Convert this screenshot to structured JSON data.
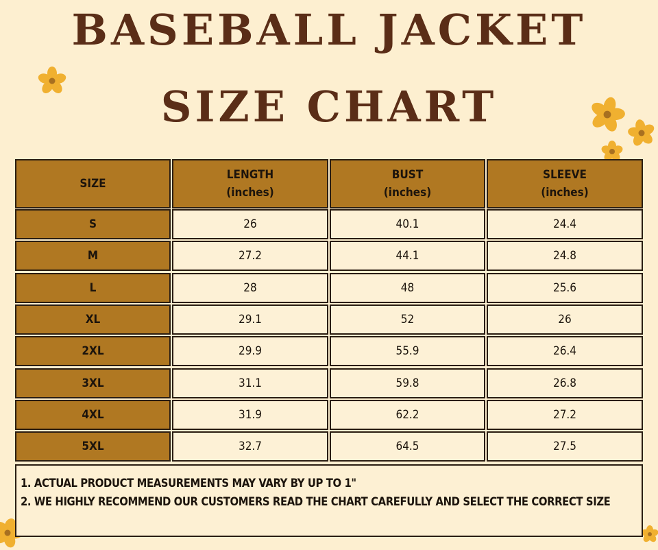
{
  "title": {
    "line1": "BASEBALL JACKET",
    "line2": "SIZE CHART"
  },
  "colors": {
    "background": "#fdefd0",
    "title": "#5a2d17",
    "header_fill": "#b07822",
    "cell_fill": "#fdf1d6",
    "border": "#2a1d12",
    "flower": "#f0b030",
    "flower_center": "#a87020"
  },
  "table": {
    "headers": [
      {
        "label": "SIZE",
        "unit": ""
      },
      {
        "label": "LENGTH",
        "unit": "(inches)"
      },
      {
        "label": "BUST",
        "unit": "(inches)"
      },
      {
        "label": "SLEEVE",
        "unit": "(inches)"
      }
    ],
    "rows": [
      {
        "size": "S",
        "length": "26",
        "bust": "40.1",
        "sleeve": "24.4"
      },
      {
        "size": "M",
        "length": "27.2",
        "bust": "44.1",
        "sleeve": "24.8"
      },
      {
        "size": "L",
        "length": "28",
        "bust": "48",
        "sleeve": "25.6"
      },
      {
        "size": "XL",
        "length": "29.1",
        "bust": "52",
        "sleeve": "26"
      },
      {
        "size": "2XL",
        "length": "29.9",
        "bust": "55.9",
        "sleeve": "26.4"
      },
      {
        "size": "3XL",
        "length": "31.1",
        "bust": "59.8",
        "sleeve": "26.8"
      },
      {
        "size": "4XL",
        "length": "31.9",
        "bust": "62.2",
        "sleeve": "27.2"
      },
      {
        "size": "5XL",
        "length": "32.7",
        "bust": "64.5",
        "sleeve": "27.5"
      }
    ]
  },
  "notes": [
    "1. ACTUAL PRODUCT MEASUREMENTS MAY VARY BY UP TO 1\"",
    "2. WE HIGHLY RECOMMEND OUR CUSTOMERS READ THE CHART CAREFULLY AND SELECT THE CORRECT SIZE"
  ],
  "decorations": [
    "flower-icon",
    "flower-icon",
    "flower-icon",
    "flower-icon",
    "flower-icon",
    "flower-icon"
  ]
}
